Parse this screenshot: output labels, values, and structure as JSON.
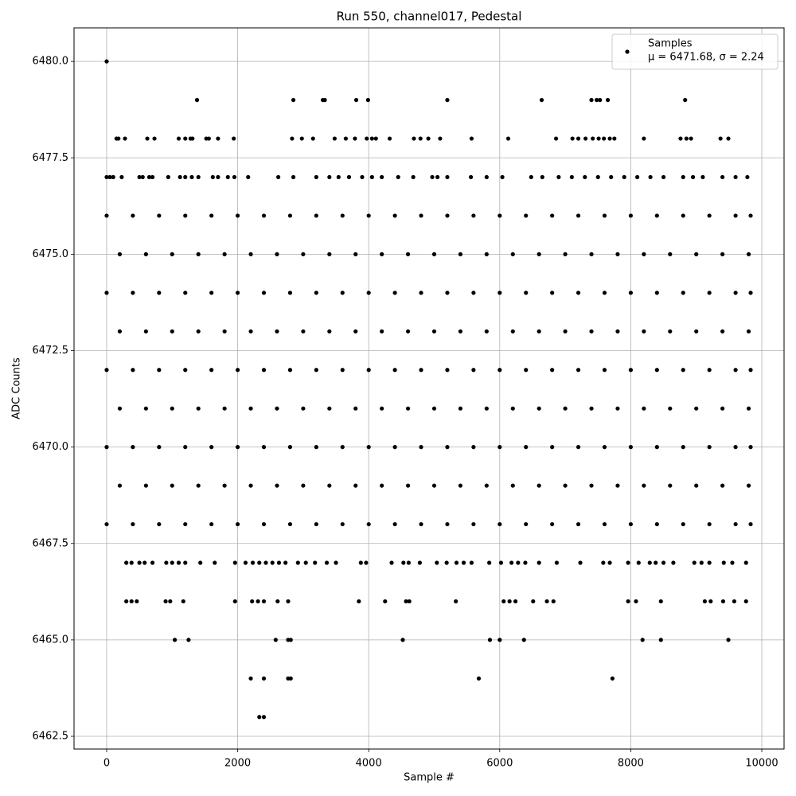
{
  "chart_data": {
    "type": "scatter",
    "title": "Run 550, channel017, Pedestal",
    "x_label": "Sample #",
    "y_label": "ADC Counts",
    "annotation": "μ = 6471.68, σ = 2.24",
    "legend": "upper right",
    "grid": true,
    "xlim": [
      -498,
      10340
    ],
    "ylim": [
      6462.17,
      6480.87
    ],
    "xticks": [
      0,
      2000,
      4000,
      6000,
      8000,
      10000
    ],
    "yticks": [
      6462.5,
      {
        "value": 6465,
        "label": "6465.0"
      },
      6467.5,
      {
        "value": 6470,
        "label": "6470.0"
      },
      6472.5,
      {
        "value": 6475,
        "label": "6475.0"
      },
      6477.5,
      {
        "value": 6480,
        "label": "6480.0"
      }
    ],
    "x": [
      0,
      400,
      800,
      1200,
      1600,
      2000,
      2400,
      2800,
      3200,
      3600,
      4000,
      4400,
      4800,
      5200,
      5600,
      6000,
      6400,
      6800,
      7200,
      7600,
      8000,
      8400,
      8800,
      9200,
      9600,
      9830,
      200,
      600,
      1000,
      1400,
      1800,
      2200,
      2600,
      3000,
      3400,
      3800,
      4200,
      4600,
      5000,
      5400,
      5800,
      6200,
      6600,
      7000,
      7400,
      7800,
      8200,
      8600,
      9000,
      9400,
      9800,
      0,
      400,
      800,
      1200,
      1600,
      2000,
      2400,
      2800,
      3200,
      3600,
      4000,
      4400,
      4800,
      5200,
      5600,
      6000,
      6400,
      6800,
      7200,
      7600,
      8000,
      8400,
      8800,
      9200,
      9600,
      9830,
      200,
      600,
      1000,
      1400,
      1800,
      2200,
      2600,
      3000,
      3400,
      3800,
      4200,
      4600,
      5000,
      5400,
      5800,
      6200,
      6600,
      7000,
      7400,
      7800,
      8200,
      8600,
      9000,
      9400,
      9800,
      0,
      400,
      800,
      1200,
      1600,
      2000,
      2400,
      2800,
      3200,
      3600,
      4000,
      4400,
      4800,
      5200,
      5600,
      6000,
      6400,
      6800,
      7200,
      7600,
      8000,
      8400,
      8800,
      9200,
      9600,
      9830,
      200,
      600,
      1000,
      1400,
      1800,
      2200,
      2600,
      3000,
      3400,
      3800,
      4200,
      4600,
      5000,
      5400,
      5800,
      6200,
      6600,
      7000,
      7400,
      7800,
      8200,
      8600,
      9000,
      9400,
      9800,
      0,
      400,
      800,
      1200,
      1600,
      2000,
      2400,
      2800,
      3200,
      3600,
      4000,
      4400,
      4800,
      5200,
      5600,
      6000,
      6400,
      6800,
      7200,
      7600,
      8000,
      8400,
      8800,
      9200,
      9600,
      9830,
      200,
      600,
      1000,
      1400,
      1800,
      2200,
      2600,
      3000,
      3400,
      3800,
      4200,
      4600,
      5000,
      5400,
      5800,
      6200,
      6600,
      7000,
      7400,
      7800,
      8200,
      8600,
      9000,
      9400,
      9800,
      0,
      400,
      800,
      1200,
      1600,
      2000,
      2400,
      2800,
      3200,
      3600,
      4000,
      4400,
      4800,
      5200,
      5600,
      6000,
      6400,
      6800,
      7200,
      7600,
      8000,
      8400,
      8800,
      9200,
      9600,
      9830,
      0,
      1380,
      2850,
      3300,
      3330,
      3810,
      3990,
      5200,
      6640,
      7400,
      7480,
      7530,
      7650,
      8830,
      150,
      180,
      280,
      620,
      730,
      1100,
      1200,
      1280,
      1310,
      1520,
      1560,
      1700,
      1940,
      2830,
      2980,
      3150,
      3480,
      3650,
      3790,
      3970,
      4050,
      4110,
      4320,
      4690,
      4790,
      4910,
      5090,
      5570,
      6130,
      6860,
      7110,
      7200,
      7310,
      7420,
      7510,
      7590,
      7680,
      7750,
      8200,
      8760,
      8850,
      8920,
      9370,
      9490,
      0,
      50,
      100,
      230,
      500,
      550,
      650,
      700,
      940,
      1120,
      1200,
      1300,
      1400,
      1620,
      1700,
      1850,
      1950,
      2160,
      2620,
      2850,
      3200,
      3400,
      3540,
      3700,
      3900,
      4050,
      4200,
      4450,
      4680,
      4970,
      5050,
      5200,
      5560,
      5800,
      6040,
      6480,
      6650,
      6900,
      7100,
      7300,
      7500,
      7700,
      7900,
      8100,
      8300,
      8500,
      8800,
      8950,
      9100,
      9400,
      9600,
      9780,
      300,
      380,
      500,
      580,
      700,
      910,
      1000,
      1100,
      1200,
      1430,
      1650,
      1960,
      2120,
      2230,
      2330,
      2430,
      2530,
      2630,
      2730,
      2920,
      3040,
      3180,
      3360,
      3500,
      3880,
      3960,
      4350,
      4530,
      4610,
      4780,
      5040,
      5190,
      5340,
      5450,
      5570,
      5840,
      6020,
      6180,
      6280,
      6390,
      6600,
      6870,
      7230,
      7580,
      7680,
      7960,
      8120,
      8290,
      8380,
      8500,
      8650,
      8970,
      9080,
      9200,
      9420,
      9550,
      9760,
      300,
      380,
      460,
      900,
      970,
      1170,
      1960,
      2220,
      2310,
      2400,
      2610,
      2770,
      3850,
      4250,
      4570,
      4620,
      5330,
      6060,
      6150,
      6240,
      6510,
      6720,
      6820,
      7960,
      8080,
      8460,
      9130,
      9220,
      9410,
      9580,
      9760,
      1040,
      1250,
      2580,
      2770,
      2810,
      4520,
      5850,
      6000,
      6370,
      8180,
      8460,
      9490,
      2200,
      2400,
      2770,
      2810,
      5680,
      7720,
      2330,
      2400
    ],
    "series": [
      {
        "name": "Samples",
        "color": "#000000",
        "values": [
          6476,
          6476,
          6476,
          6476,
          6476,
          6476,
          6476,
          6476,
          6476,
          6476,
          6476,
          6476,
          6476,
          6476,
          6476,
          6476,
          6476,
          6476,
          6476,
          6476,
          6476,
          6476,
          6476,
          6476,
          6476,
          6476,
          6475,
          6475,
          6475,
          6475,
          6475,
          6475,
          6475,
          6475,
          6475,
          6475,
          6475,
          6475,
          6475,
          6475,
          6475,
          6475,
          6475,
          6475,
          6475,
          6475,
          6475,
          6475,
          6475,
          6475,
          6475,
          6474,
          6474,
          6474,
          6474,
          6474,
          6474,
          6474,
          6474,
          6474,
          6474,
          6474,
          6474,
          6474,
          6474,
          6474,
          6474,
          6474,
          6474,
          6474,
          6474,
          6474,
          6474,
          6474,
          6474,
          6474,
          6474,
          6473,
          6473,
          6473,
          6473,
          6473,
          6473,
          6473,
          6473,
          6473,
          6473,
          6473,
          6473,
          6473,
          6473,
          6473,
          6473,
          6473,
          6473,
          6473,
          6473,
          6473,
          6473,
          6473,
          6473,
          6473,
          6472,
          6472,
          6472,
          6472,
          6472,
          6472,
          6472,
          6472,
          6472,
          6472,
          6472,
          6472,
          6472,
          6472,
          6472,
          6472,
          6472,
          6472,
          6472,
          6472,
          6472,
          6472,
          6472,
          6472,
          6472,
          6472,
          6471,
          6471,
          6471,
          6471,
          6471,
          6471,
          6471,
          6471,
          6471,
          6471,
          6471,
          6471,
          6471,
          6471,
          6471,
          6471,
          6471,
          6471,
          6471,
          6471,
          6471,
          6471,
          6471,
          6471,
          6471,
          6470,
          6470,
          6470,
          6470,
          6470,
          6470,
          6470,
          6470,
          6470,
          6470,
          6470,
          6470,
          6470,
          6470,
          6470,
          6470,
          6470,
          6470,
          6470,
          6470,
          6470,
          6470,
          6470,
          6470,
          6470,
          6470,
          6469,
          6469,
          6469,
          6469,
          6469,
          6469,
          6469,
          6469,
          6469,
          6469,
          6469,
          6469,
          6469,
          6469,
          6469,
          6469,
          6469,
          6469,
          6469,
          6469,
          6469,
          6469,
          6469,
          6469,
          6469,
          6468,
          6468,
          6468,
          6468,
          6468,
          6468,
          6468,
          6468,
          6468,
          6468,
          6468,
          6468,
          6468,
          6468,
          6468,
          6468,
          6468,
          6468,
          6468,
          6468,
          6468,
          6468,
          6468,
          6468,
          6468,
          6468,
          6480,
          6479,
          6479,
          6479,
          6479,
          6479,
          6479,
          6479,
          6479,
          6479,
          6479,
          6479,
          6479,
          6479,
          6478,
          6478,
          6478,
          6478,
          6478,
          6478,
          6478,
          6478,
          6478,
          6478,
          6478,
          6478,
          6478,
          6478,
          6478,
          6478,
          6478,
          6478,
          6478,
          6478,
          6478,
          6478,
          6478,
          6478,
          6478,
          6478,
          6478,
          6478,
          6478,
          6478,
          6478,
          6478,
          6478,
          6478,
          6478,
          6478,
          6478,
          6478,
          6478,
          6478,
          6478,
          6478,
          6478,
          6478,
          6477,
          6477,
          6477,
          6477,
          6477,
          6477,
          6477,
          6477,
          6477,
          6477,
          6477,
          6477,
          6477,
          6477,
          6477,
          6477,
          6477,
          6477,
          6477,
          6477,
          6477,
          6477,
          6477,
          6477,
          6477,
          6477,
          6477,
          6477,
          6477,
          6477,
          6477,
          6477,
          6477,
          6477,
          6477,
          6477,
          6477,
          6477,
          6477,
          6477,
          6477,
          6477,
          6477,
          6477,
          6477,
          6477,
          6477,
          6477,
          6477,
          6477,
          6477,
          6477,
          6467,
          6467,
          6467,
          6467,
          6467,
          6467,
          6467,
          6467,
          6467,
          6467,
          6467,
          6467,
          6467,
          6467,
          6467,
          6467,
          6467,
          6467,
          6467,
          6467,
          6467,
          6467,
          6467,
          6467,
          6467,
          6467,
          6467,
          6467,
          6467,
          6467,
          6467,
          6467,
          6467,
          6467,
          6467,
          6467,
          6467,
          6467,
          6467,
          6467,
          6467,
          6467,
          6467,
          6467,
          6467,
          6467,
          6467,
          6467,
          6467,
          6467,
          6467,
          6467,
          6467,
          6467,
          6467,
          6467,
          6467,
          6466,
          6466,
          6466,
          6466,
          6466,
          6466,
          6466,
          6466,
          6466,
          6466,
          6466,
          6466,
          6466,
          6466,
          6466,
          6466,
          6466,
          6466,
          6466,
          6466,
          6466,
          6466,
          6466,
          6466,
          6466,
          6466,
          6466,
          6466,
          6466,
          6466,
          6466,
          6465,
          6465,
          6465,
          6465,
          6465,
          6465,
          6465,
          6465,
          6465,
          6465,
          6465,
          6465,
          6464,
          6464,
          6464,
          6464,
          6464,
          6464,
          6463,
          6463
        ]
      }
    ]
  }
}
